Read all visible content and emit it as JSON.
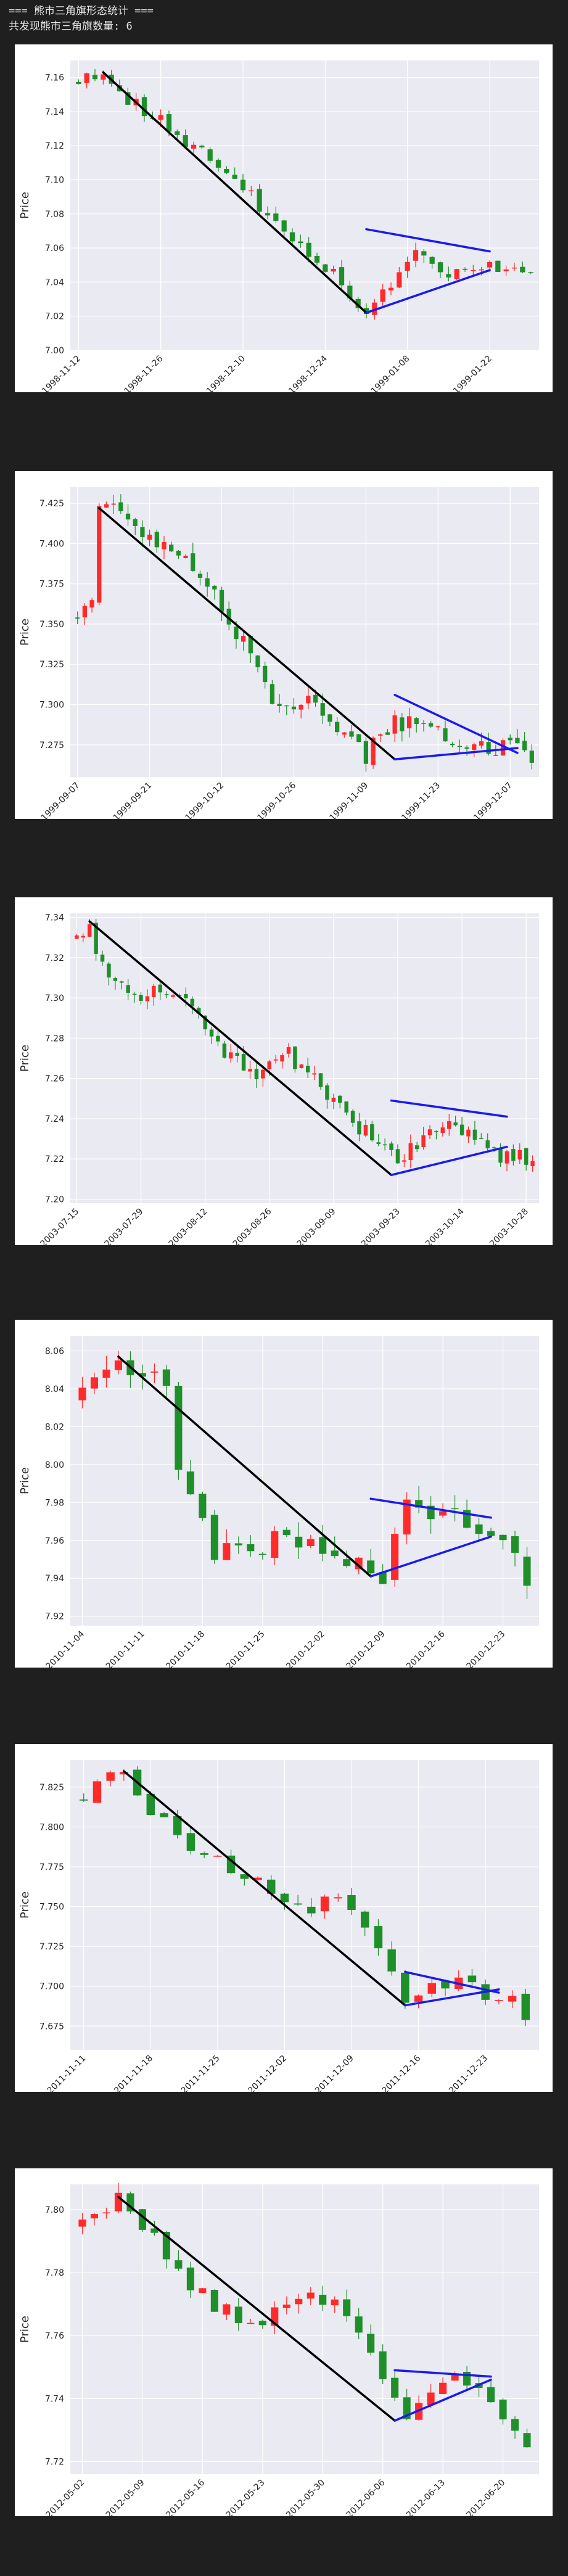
{
  "header": {
    "title": "=== 熊市三角旗形态统计 ===",
    "count_line": "共发现熊市三角旗数量: 6"
  },
  "colors": {
    "up": "#ff2a2a",
    "down": "#1f8f2a",
    "pole": "#000000",
    "pennant": "#1a1af0",
    "plot_bg": "#eaeaf2",
    "grid": "#ffffff"
  },
  "chart_data": [
    {
      "type": "candlestick",
      "ylabel": "Price",
      "xlabel": "",
      "ylim": [
        7.0,
        7.17
      ],
      "yticks": [
        7.0,
        7.02,
        7.04,
        7.06,
        7.08,
        7.1,
        7.12,
        7.14,
        7.16
      ],
      "ytick_labels": [
        "7.00",
        "7.02",
        "7.04",
        "7.06",
        "7.08",
        "7.10",
        "7.12",
        "7.14",
        "7.16"
      ],
      "xtick_labels": [
        "1998-11-12",
        "1998-11-26",
        "1998-12-10",
        "1998-12-24",
        "1999-01-08",
        "1999-01-22"
      ],
      "xtick_index": [
        0,
        10,
        20,
        30,
        40,
        50
      ],
      "n": 56,
      "start": 7.158,
      "anchors": [
        [
          0,
          7.158
        ],
        [
          3,
          7.163
        ],
        [
          5,
          7.15
        ],
        [
          10,
          7.135
        ],
        [
          15,
          7.115
        ],
        [
          20,
          7.095
        ],
        [
          25,
          7.07
        ],
        [
          30,
          7.05
        ],
        [
          35,
          7.022
        ],
        [
          38,
          7.04
        ],
        [
          41,
          7.062
        ],
        [
          44,
          7.045
        ],
        [
          47,
          7.05
        ],
        [
          50,
          7.05
        ],
        [
          55,
          7.042
        ]
      ],
      "vol": 0.008,
      "seed": 11,
      "pole": [
        [
          3,
          7.163
        ],
        [
          35,
          7.022
        ]
      ],
      "upper": [
        [
          35,
          7.071
        ],
        [
          50,
          7.058
        ]
      ],
      "lower": [
        [
          35,
          7.022
        ],
        [
          50,
          7.047
        ]
      ]
    },
    {
      "type": "candlestick",
      "ylabel": "Price",
      "xlabel": "",
      "ylim": [
        7.255,
        7.435
      ],
      "yticks": [
        7.275,
        7.3,
        7.325,
        7.35,
        7.375,
        7.4,
        7.425
      ],
      "ytick_labels": [
        "7.275",
        "7.300",
        "7.325",
        "7.350",
        "7.375",
        "7.400",
        "7.425"
      ],
      "xtick_labels": [
        "1999-09-07",
        "1999-09-21",
        "1999-10-12",
        "1999-10-26",
        "1999-11-09",
        "1999-11-23",
        "1999-12-07"
      ],
      "xtick_index": [
        0,
        10,
        20,
        30,
        40,
        50,
        60
      ],
      "n": 64,
      "start": 7.355,
      "anchors": [
        [
          0,
          7.355
        ],
        [
          2,
          7.36
        ],
        [
          3,
          7.42
        ],
        [
          5,
          7.425
        ],
        [
          10,
          7.405
        ],
        [
          15,
          7.39
        ],
        [
          20,
          7.36
        ],
        [
          24,
          7.33
        ],
        [
          28,
          7.295
        ],
        [
          32,
          7.3
        ],
        [
          36,
          7.285
        ],
        [
          40,
          7.268
        ],
        [
          44,
          7.29
        ],
        [
          48,
          7.285
        ],
        [
          52,
          7.28
        ],
        [
          56,
          7.276
        ],
        [
          60,
          7.272
        ],
        [
          63,
          7.268
        ]
      ],
      "vol": 0.012,
      "seed": 23,
      "pole": [
        [
          3,
          7.422
        ],
        [
          44,
          7.266
        ]
      ],
      "upper": [
        [
          44,
          7.306
        ],
        [
          61,
          7.27
        ]
      ],
      "lower": [
        [
          44,
          7.266
        ],
        [
          61,
          7.273
        ]
      ]
    },
    {
      "type": "candlestick",
      "ylabel": "Price",
      "xlabel": "",
      "ylim": [
        7.198,
        7.342
      ],
      "yticks": [
        7.2,
        7.22,
        7.24,
        7.26,
        7.28,
        7.3,
        7.32,
        7.34
      ],
      "ytick_labels": [
        "7.20",
        "7.22",
        "7.24",
        "7.26",
        "7.28",
        "7.30",
        "7.32",
        "7.34"
      ],
      "xtick_labels": [
        "2003-07-15",
        "2003-07-29",
        "2003-08-12",
        "2003-08-26",
        "2003-09-09",
        "2003-09-23",
        "2003-10-14",
        "2003-10-28"
      ],
      "xtick_index": [
        0,
        10,
        20,
        30,
        40,
        50,
        60,
        70
      ],
      "n": 72,
      "start": 7.33,
      "anchors": [
        [
          0,
          7.33
        ],
        [
          2,
          7.335
        ],
        [
          4,
          7.315
        ],
        [
          8,
          7.3
        ],
        [
          12,
          7.305
        ],
        [
          16,
          7.3
        ],
        [
          20,
          7.285
        ],
        [
          24,
          7.27
        ],
        [
          28,
          7.262
        ],
        [
          32,
          7.275
        ],
        [
          36,
          7.262
        ],
        [
          40,
          7.25
        ],
        [
          44,
          7.235
        ],
        [
          48,
          7.228
        ],
        [
          50,
          7.218
        ],
        [
          54,
          7.23
        ],
        [
          58,
          7.238
        ],
        [
          62,
          7.232
        ],
        [
          66,
          7.222
        ],
        [
          70,
          7.22
        ],
        [
          71,
          7.218
        ]
      ],
      "vol": 0.008,
      "seed": 37,
      "pole": [
        [
          2,
          7.338
        ],
        [
          49,
          7.212
        ]
      ],
      "upper": [
        [
          49,
          7.249
        ],
        [
          67,
          7.241
        ]
      ],
      "lower": [
        [
          49,
          7.212
        ],
        [
          67,
          7.226
        ]
      ]
    },
    {
      "type": "candlestick",
      "ylabel": "Price",
      "xlabel": "",
      "ylim": [
        7.915,
        8.068
      ],
      "yticks": [
        7.92,
        7.94,
        7.96,
        7.98,
        8.0,
        8.02,
        8.04,
        8.06
      ],
      "ytick_labels": [
        "7.92",
        "7.94",
        "7.96",
        "7.98",
        "8.00",
        "8.02",
        "8.04",
        "8.06"
      ],
      "xtick_labels": [
        "2010-11-04",
        "2010-11-11",
        "2010-11-18",
        "2010-11-25",
        "2010-12-02",
        "2010-12-09",
        "2010-12-16",
        "2010-12-23"
      ],
      "xtick_index": [
        0,
        5,
        10,
        15,
        20,
        25,
        30,
        35
      ],
      "n": 38,
      "start": 8.035,
      "anchors": [
        [
          0,
          8.035
        ],
        [
          2,
          8.05
        ],
        [
          3,
          8.056
        ],
        [
          5,
          8.05
        ],
        [
          7,
          8.04
        ],
        [
          8,
          8.0
        ],
        [
          9,
          7.99
        ],
        [
          11,
          7.955
        ],
        [
          13,
          7.96
        ],
        [
          15,
          7.955
        ],
        [
          17,
          7.965
        ],
        [
          19,
          7.955
        ],
        [
          21,
          7.95
        ],
        [
          23,
          7.955
        ],
        [
          25,
          7.942
        ],
        [
          27,
          7.975
        ],
        [
          29,
          7.978
        ],
        [
          31,
          7.972
        ],
        [
          33,
          7.97
        ],
        [
          35,
          7.955
        ],
        [
          37,
          7.94
        ]
      ],
      "vol": 0.014,
      "seed": 51,
      "pole": [
        [
          3,
          8.057
        ],
        [
          24,
          7.941
        ]
      ],
      "upper": [
        [
          24,
          7.982
        ],
        [
          34,
          7.972
        ]
      ],
      "lower": [
        [
          24,
          7.941
        ],
        [
          34,
          7.962
        ]
      ]
    },
    {
      "type": "candlestick",
      "ylabel": "Price",
      "xlabel": "",
      "ylim": [
        7.66,
        7.842
      ],
      "yticks": [
        7.675,
        7.7,
        7.725,
        7.75,
        7.775,
        7.8,
        7.825
      ],
      "ytick_labels": [
        "7.675",
        "7.700",
        "7.725",
        "7.750",
        "7.775",
        "7.800",
        "7.825"
      ],
      "xtick_labels": [
        "2011-11-11",
        "2011-11-18",
        "2011-11-25",
        "2011-12-02",
        "2011-12-09",
        "2011-12-16",
        "2011-12-23"
      ],
      "xtick_index": [
        0,
        5,
        10,
        15,
        20,
        25,
        30
      ],
      "n": 34,
      "start": 7.818,
      "anchors": [
        [
          0,
          7.818
        ],
        [
          2,
          7.835
        ],
        [
          3,
          7.833
        ],
        [
          5,
          7.81
        ],
        [
          7,
          7.795
        ],
        [
          9,
          7.785
        ],
        [
          11,
          7.775
        ],
        [
          13,
          7.765
        ],
        [
          15,
          7.755
        ],
        [
          17,
          7.75
        ],
        [
          19,
          7.755
        ],
        [
          21,
          7.735
        ],
        [
          23,
          7.705
        ],
        [
          24,
          7.69
        ],
        [
          26,
          7.7
        ],
        [
          28,
          7.705
        ],
        [
          30,
          7.695
        ],
        [
          32,
          7.69
        ],
        [
          33,
          7.68
        ]
      ],
      "vol": 0.01,
      "seed": 67,
      "pole": [
        [
          3,
          7.835
        ],
        [
          24,
          7.688
        ]
      ],
      "upper": [
        [
          24,
          7.709
        ],
        [
          31,
          7.696
        ]
      ],
      "lower": [
        [
          24,
          7.688
        ],
        [
          31,
          7.698
        ]
      ]
    },
    {
      "type": "candlestick",
      "ylabel": "Price",
      "xlabel": "",
      "ylim": [
        7.716,
        7.808
      ],
      "yticks": [
        7.72,
        7.74,
        7.76,
        7.78,
        7.8
      ],
      "ytick_labels": [
        "7.72",
        "7.74",
        "7.76",
        "7.78",
        "7.80"
      ],
      "xtick_labels": [
        "2012-05-02",
        "2012-05-09",
        "2012-05-16",
        "2012-05-23",
        "2012-05-30",
        "2012-06-06",
        "2012-06-13",
        "2012-06-20"
      ],
      "xtick_index": [
        0,
        5,
        10,
        15,
        20,
        25,
        30,
        35
      ],
      "n": 38,
      "start": 7.795,
      "anchors": [
        [
          0,
          7.795
        ],
        [
          2,
          7.8
        ],
        [
          3,
          7.803
        ],
        [
          5,
          7.795
        ],
        [
          7,
          7.785
        ],
        [
          9,
          7.775
        ],
        [
          11,
          7.77
        ],
        [
          13,
          7.765
        ],
        [
          15,
          7.765
        ],
        [
          17,
          7.768
        ],
        [
          19,
          7.775
        ],
        [
          21,
          7.77
        ],
        [
          23,
          7.76
        ],
        [
          25,
          7.745
        ],
        [
          27,
          7.735
        ],
        [
          29,
          7.742
        ],
        [
          31,
          7.745
        ],
        [
          33,
          7.742
        ],
        [
          35,
          7.735
        ],
        [
          37,
          7.725
        ]
      ],
      "vol": 0.006,
      "seed": 83,
      "pole": [
        [
          3,
          7.804
        ],
        [
          26,
          7.733
        ]
      ],
      "upper": [
        [
          26,
          7.749
        ],
        [
          34,
          7.747
        ]
      ],
      "lower": [
        [
          26,
          7.733
        ],
        [
          34,
          7.746
        ]
      ]
    }
  ]
}
